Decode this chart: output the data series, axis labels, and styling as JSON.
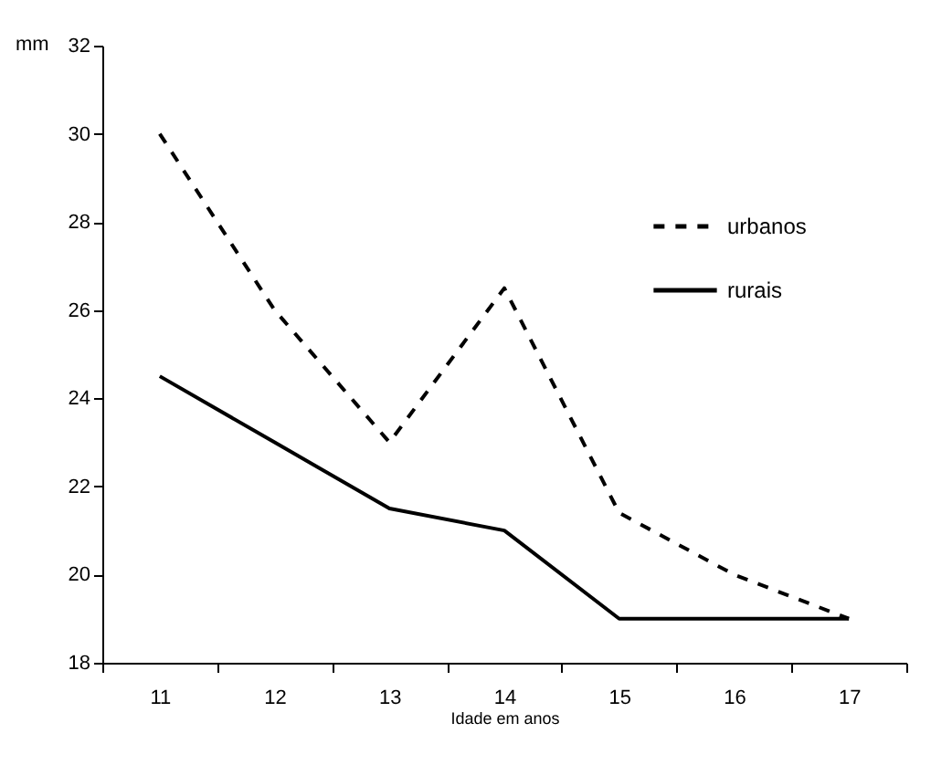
{
  "chart_data": {
    "type": "line",
    "xlabel": "Idade em anos",
    "ylabel": "mm",
    "categories": [
      "11",
      "12",
      "13",
      "14",
      "15",
      "16",
      "17"
    ],
    "series": [
      {
        "name": "urbanos",
        "color": "#000000",
        "line_style": "dashed",
        "values": [
          30,
          26,
          23,
          26.5,
          21.4,
          20,
          19
        ]
      },
      {
        "name": "rurais",
        "color": "#000000",
        "line_style": "solid",
        "values": [
          24.5,
          23,
          21.5,
          21,
          19,
          19,
          19
        ]
      }
    ],
    "ylim": [
      18,
      32
    ],
    "yticks": [
      18,
      20,
      22,
      24,
      26,
      28,
      30,
      32
    ],
    "grid": false,
    "legend": "top right",
    "marker": "none"
  }
}
